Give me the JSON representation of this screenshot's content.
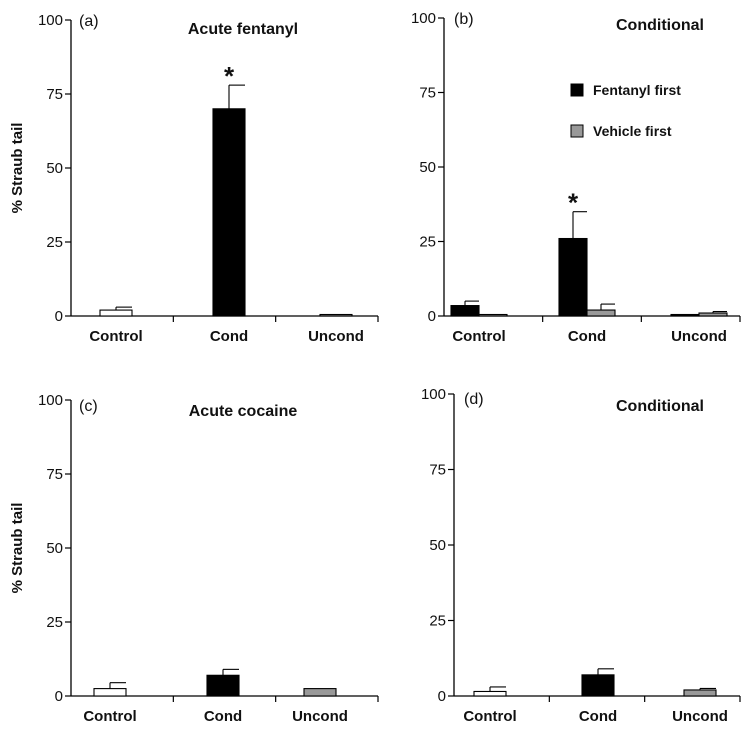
{
  "chart_data": [
    {
      "type": "bar",
      "panel_label": "(a)",
      "title": "Acute fentanyl",
      "ylabel": "% Straub tail",
      "ylim": [
        0,
        100
      ],
      "yticks": [
        0,
        25,
        50,
        75,
        100
      ],
      "categories": [
        "Control",
        "Cond",
        "Uncond"
      ],
      "legend": [],
      "bars": [
        {
          "category": "Control",
          "series": "",
          "value": 2,
          "error": 1,
          "color": "#ffffff",
          "significant": false
        },
        {
          "category": "Cond",
          "series": "",
          "value": 70,
          "error": 8,
          "color": "#000000",
          "significant": true
        },
        {
          "category": "Uncond",
          "series": "",
          "value": 0.5,
          "error": 0,
          "color": "#999999",
          "significant": false
        }
      ]
    },
    {
      "type": "bar",
      "panel_label": "(b)",
      "title": "Conditional",
      "ylabel": "",
      "ylim": [
        0,
        100
      ],
      "yticks": [
        0,
        25,
        50,
        75,
        100
      ],
      "categories": [
        "Control",
        "Cond",
        "Uncond"
      ],
      "legend": [
        {
          "label": "Fentanyl first",
          "color": "#000000"
        },
        {
          "label": "Vehicle first",
          "color": "#999999"
        }
      ],
      "bars": [
        {
          "category": "Control",
          "series": "Fentanyl first",
          "value": 3.5,
          "error": 1.5,
          "color": "#000000",
          "significant": false
        },
        {
          "category": "Control",
          "series": "Vehicle first",
          "value": 0.5,
          "error": 0,
          "color": "#999999",
          "significant": false
        },
        {
          "category": "Cond",
          "series": "Fentanyl first",
          "value": 26,
          "error": 9,
          "color": "#000000",
          "significant": true
        },
        {
          "category": "Cond",
          "series": "Vehicle first",
          "value": 2,
          "error": 2,
          "color": "#999999",
          "significant": false
        },
        {
          "category": "Uncond",
          "series": "Fentanyl first",
          "value": 0.5,
          "error": 0,
          "color": "#000000",
          "significant": false
        },
        {
          "category": "Uncond",
          "series": "Vehicle first",
          "value": 1,
          "error": 0.5,
          "color": "#999999",
          "significant": false
        }
      ]
    },
    {
      "type": "bar",
      "panel_label": "(c)",
      "title": "Acute cocaine",
      "ylabel": "% Straub tail",
      "ylim": [
        0,
        100
      ],
      "yticks": [
        0,
        25,
        50,
        75,
        100
      ],
      "categories": [
        "Control",
        "Cond",
        "Uncond"
      ],
      "legend": [],
      "bars": [
        {
          "category": "Control",
          "series": "",
          "value": 2.5,
          "error": 2,
          "color": "#ffffff",
          "significant": false
        },
        {
          "category": "Cond",
          "series": "",
          "value": 7,
          "error": 2,
          "color": "#000000",
          "significant": false
        },
        {
          "category": "Uncond",
          "series": "",
          "value": 2.5,
          "error": 0,
          "color": "#999999",
          "significant": false
        }
      ]
    },
    {
      "type": "bar",
      "panel_label": "(d)",
      "title": "Conditional",
      "ylabel": "",
      "ylim": [
        0,
        100
      ],
      "yticks": [
        0,
        25,
        50,
        75,
        100
      ],
      "categories": [
        "Control",
        "Cond",
        "Uncond"
      ],
      "legend": [],
      "bars": [
        {
          "category": "Control",
          "series": "",
          "value": 1.5,
          "error": 1.5,
          "color": "#ffffff",
          "significant": false
        },
        {
          "category": "Cond",
          "series": "",
          "value": 7,
          "error": 2,
          "color": "#000000",
          "significant": false
        },
        {
          "category": "Uncond",
          "series": "",
          "value": 2,
          "error": 0.5,
          "color": "#999999",
          "significant": false
        }
      ]
    }
  ],
  "significance_marker": "*"
}
